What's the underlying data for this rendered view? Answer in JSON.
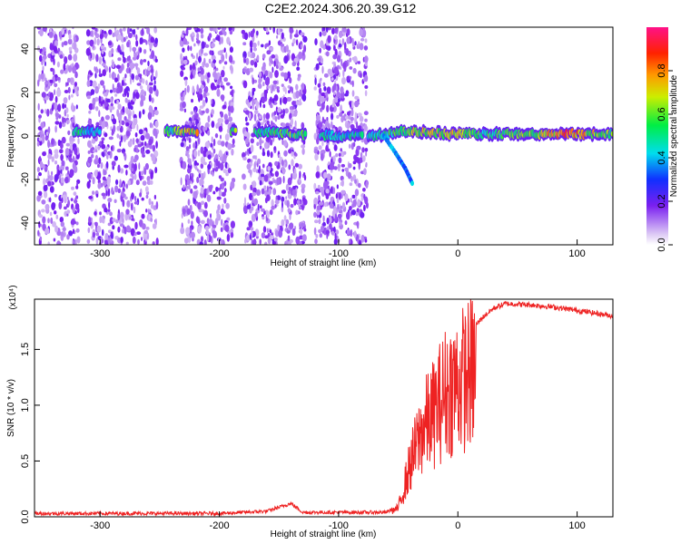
{
  "title": "C2E2.2024.306.20.39.G12",
  "chart_data": [
    {
      "type": "heatmap",
      "xlabel": "Height of straight line (km)",
      "ylabel": "Frequency (Hz)",
      "xlim": [
        -355,
        130
      ],
      "ylim": [
        -50,
        50
      ],
      "xticks": [
        -300,
        -200,
        -100,
        0,
        100
      ],
      "yticks": [
        -40,
        -20,
        0,
        20,
        40
      ],
      "colorbar": {
        "label": "Normalized spectral amplitude",
        "range": [
          0,
          1
        ],
        "ticks": [
          "0.0",
          "0.2",
          "0.4",
          "0.6",
          "0.8"
        ]
      },
      "noise_band_ranges_km": [
        [
          -352,
          -318
        ],
        [
          -310,
          -252
        ],
        [
          -232,
          -188
        ],
        [
          -180,
          -128
        ],
        [
          -120,
          -76
        ]
      ],
      "carrier_trace": [
        {
          "x": -320,
          "f": 2,
          "amp": 0.5
        },
        {
          "x": -305,
          "f": 2,
          "amp": 0.45
        },
        {
          "x": -240,
          "f": 2,
          "amp": 0.55
        },
        {
          "x": -225,
          "f": 2,
          "amp": 0.75
        },
        {
          "x": -160,
          "f": 2,
          "amp": 0.5
        },
        {
          "x": -140,
          "f": 1,
          "amp": 0.6
        },
        {
          "x": -100,
          "f": 0,
          "amp": 0.45
        },
        {
          "x": -70,
          "f": 0,
          "amp": 0.5
        },
        {
          "x": -50,
          "f": 2,
          "amp": 0.55
        },
        {
          "x": -30,
          "f": 2,
          "amp": 0.7
        },
        {
          "x": -10,
          "f": 1,
          "amp": 0.75
        },
        {
          "x": 20,
          "f": 1,
          "amp": 0.55
        },
        {
          "x": 60,
          "f": 1,
          "amp": 0.6
        },
        {
          "x": 90,
          "f": 1,
          "amp": 0.85
        },
        {
          "x": 125,
          "f": 1,
          "amp": 0.6
        }
      ],
      "drift_trace": [
        {
          "x": -62,
          "f": 0
        },
        {
          "x": -52,
          "f": -8
        },
        {
          "x": -44,
          "f": -15
        },
        {
          "x": -38,
          "f": -22
        }
      ]
    },
    {
      "type": "line",
      "xlabel": "Height of straight line (km)",
      "ylabel": "SNR (10 * v/v)",
      "y_multiplier": "(x10⁴)",
      "xlim": [
        -355,
        130
      ],
      "ylim": [
        0,
        1.95
      ],
      "xticks": [
        -300,
        -200,
        -100,
        0,
        100
      ],
      "yticks": [
        "0.0",
        "0.5",
        "1.0",
        "1.5"
      ],
      "series_color": "#ee2222",
      "envelope": [
        {
          "x": -355,
          "y": 0.03
        },
        {
          "x": -200,
          "y": 0.03
        },
        {
          "x": -160,
          "y": 0.05
        },
        {
          "x": -140,
          "y": 0.12
        },
        {
          "x": -130,
          "y": 0.04
        },
        {
          "x": -60,
          "y": 0.04
        },
        {
          "x": -50,
          "y": 0.1
        },
        {
          "x": -40,
          "y": 0.6
        },
        {
          "x": -30,
          "y": 1.0
        },
        {
          "x": -20,
          "y": 1.2
        },
        {
          "x": -10,
          "y": 1.45
        },
        {
          "x": 0,
          "y": 1.55
        },
        {
          "x": 10,
          "y": 1.65
        },
        {
          "x": 20,
          "y": 1.78
        },
        {
          "x": 30,
          "y": 1.87
        },
        {
          "x": 40,
          "y": 1.91
        },
        {
          "x": 60,
          "y": 1.9
        },
        {
          "x": 80,
          "y": 1.88
        },
        {
          "x": 100,
          "y": 1.85
        },
        {
          "x": 130,
          "y": 1.8
        }
      ]
    }
  ]
}
